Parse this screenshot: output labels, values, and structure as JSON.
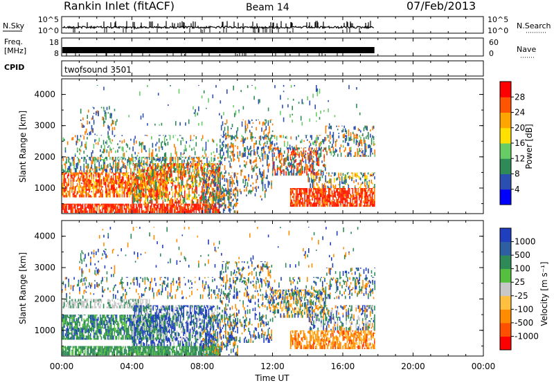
{
  "header": {
    "station": "Rankin Inlet (fitACF)",
    "beam": "Beam 14",
    "date": "07/Feb/2013"
  },
  "noise_panel": {
    "left_label": "N.Sky",
    "ticks": [
      "10^5",
      "10^0"
    ],
    "right_label": "N.Search"
  },
  "freq_panel": {
    "left_label_1": "Freq.",
    "left_label_2": "[MHz]",
    "left_ticks": [
      "18",
      "8"
    ],
    "right_ticks": [
      "60",
      "0"
    ],
    "right_label": "Nave"
  },
  "cpid_panel": {
    "label": "CPID",
    "value": "twofsound 3501"
  },
  "chart_data": [
    {
      "type": "heatmap",
      "title": "",
      "ylabel": "Slant Range [km]",
      "xlabel": "",
      "y_ticks": [
        "1000",
        "2000",
        "3000",
        "4000"
      ],
      "ylim": [
        180,
        4500
      ],
      "x_ticks": [
        "00:00",
        "04:00",
        "08:00",
        "12:00",
        "16:00",
        "20:00",
        "00:00"
      ],
      "x_data_end": "17:48",
      "colorbar": {
        "label": "Power [dB]",
        "ticks": [
          "4",
          "8",
          "12",
          "16",
          "20",
          "24",
          "28"
        ],
        "range": [
          0,
          30
        ],
        "colors": [
          "#0000ff",
          "#2a4fb0",
          "#2e8b57",
          "#66cc66",
          "#ffe000",
          "#ffa500",
          "#ff5500",
          "#ff0000"
        ]
      }
    },
    {
      "type": "heatmap",
      "title": "",
      "ylabel": "Slant Range [km]",
      "xlabel": "Time UT",
      "y_ticks": [
        "1000",
        "2000",
        "3000",
        "4000"
      ],
      "ylim": [
        180,
        4500
      ],
      "x_ticks": [
        "00:00",
        "04:00",
        "08:00",
        "12:00",
        "16:00",
        "20:00",
        "00:00"
      ],
      "x_data_end": "17:48",
      "colorbar": {
        "label": "Velocity [m s⁻¹]",
        "ticks": [
          "1000",
          "500",
          "100",
          "25",
          "-25",
          "-100",
          "-500",
          "-1000"
        ],
        "colors": [
          "#1f3fbf",
          "#2e5fa0",
          "#2e8b57",
          "#55c040",
          "#c8c8c8",
          "#ffc040",
          "#ff8c00",
          "#ff5000",
          "#ff0000"
        ]
      }
    }
  ]
}
